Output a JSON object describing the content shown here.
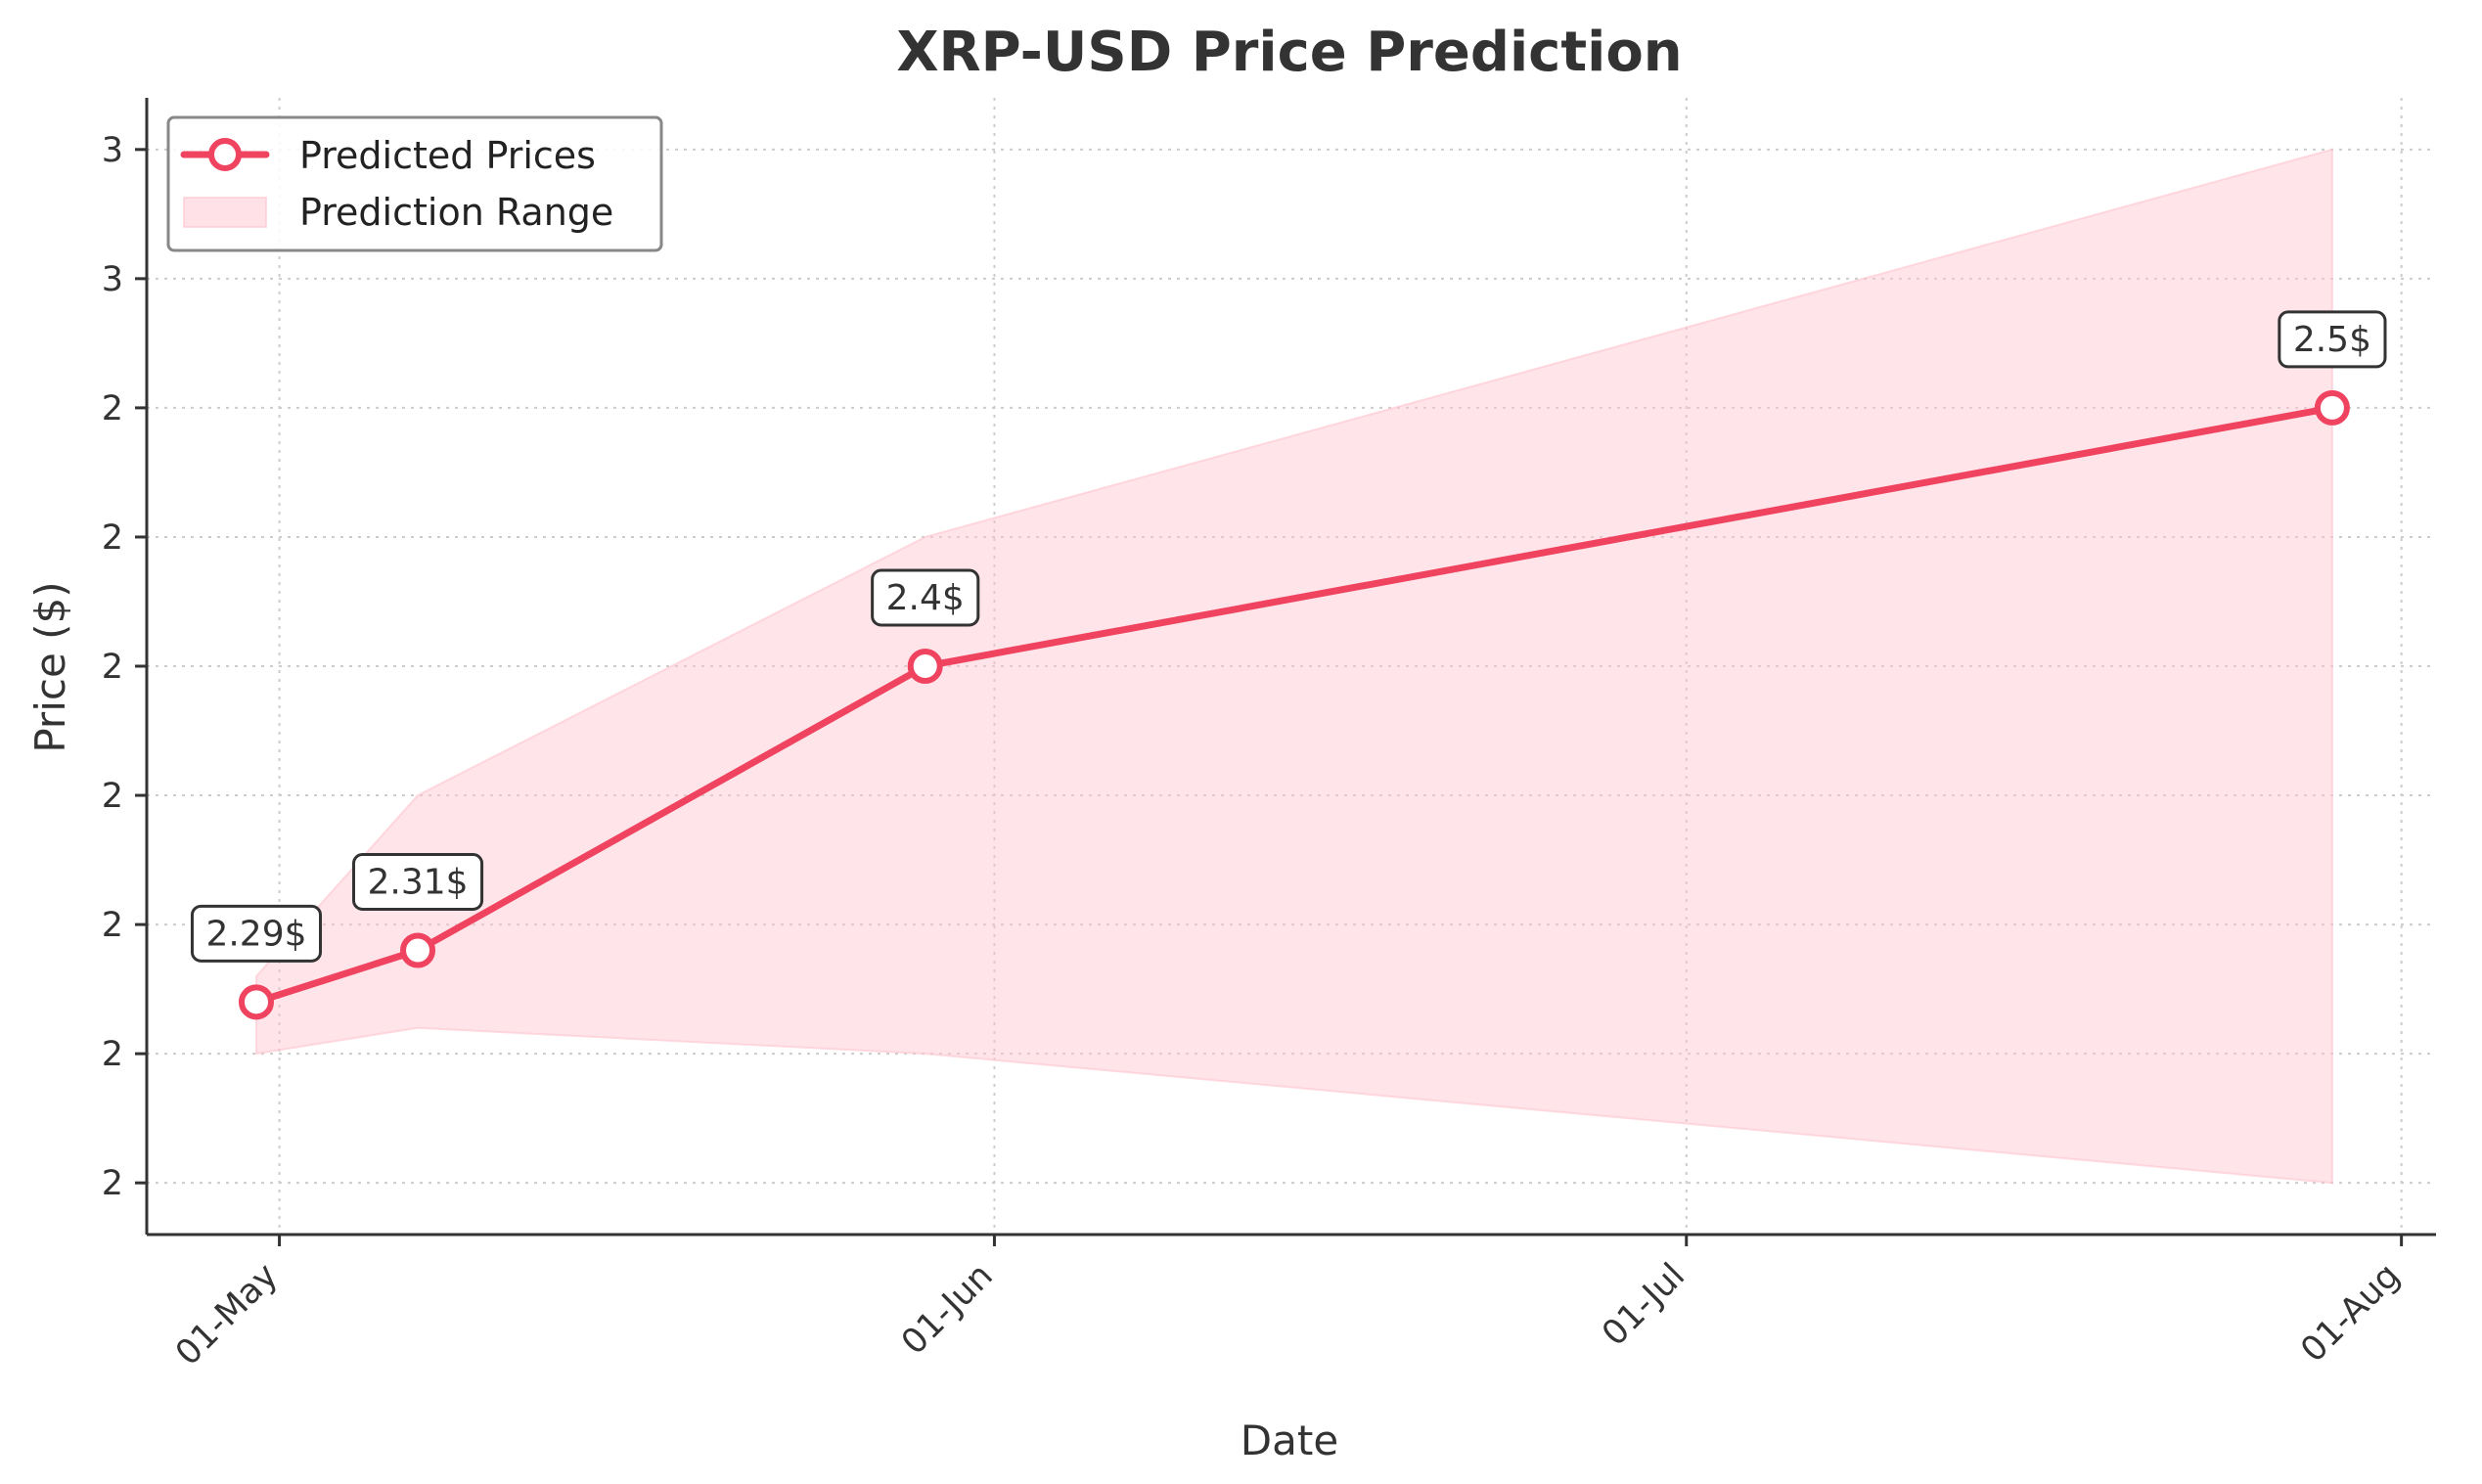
{
  "chart_data": {
    "type": "line",
    "title": "XRP-USD Price Prediction",
    "xlabel": "Date",
    "ylabel": "Price ($)",
    "grid": true,
    "legend_position": "top-left",
    "x_ticks": [
      {
        "date": "2025-05-01",
        "label": "01-May"
      },
      {
        "date": "2025-06-01",
        "label": "01-Jun"
      },
      {
        "date": "2025-07-01",
        "label": "01-Jul"
      },
      {
        "date": "2025-08-01",
        "label": "01-Aug"
      }
    ],
    "xlim": [
      "2025-04-25T06:00",
      "2025-08-02T12:00"
    ],
    "y_ticks": [
      {
        "value": 2.22,
        "label": "2"
      },
      {
        "value": 2.27,
        "label": "2"
      },
      {
        "value": 2.32,
        "label": "2"
      },
      {
        "value": 2.37,
        "label": "2"
      },
      {
        "value": 2.42,
        "label": "2"
      },
      {
        "value": 2.47,
        "label": "2"
      },
      {
        "value": 2.52,
        "label": "2"
      },
      {
        "value": 2.57,
        "label": "3"
      },
      {
        "value": 2.62,
        "label": "3"
      }
    ],
    "ylim": [
      2.2,
      2.64
    ],
    "series": [
      {
        "name": "Predicted Prices",
        "color": "#f0435f",
        "points": [
          {
            "date": "2025-04-30",
            "value": 2.29,
            "label": "2.29$"
          },
          {
            "date": "2025-05-07",
            "value": 2.31,
            "label": "2.31$"
          },
          {
            "date": "2025-05-29",
            "value": 2.42,
            "label": "2.4$"
          },
          {
            "date": "2025-07-29",
            "value": 2.52,
            "label": "2.5$"
          }
        ]
      }
    ],
    "range": {
      "name": "Prediction Range",
      "color": "#ffc4cf",
      "points": [
        {
          "date": "2025-04-30",
          "low": 2.27,
          "high": 2.3
        },
        {
          "date": "2025-05-07",
          "low": 2.28,
          "high": 2.37
        },
        {
          "date": "2025-05-29",
          "low": 2.27,
          "high": 2.47
        },
        {
          "date": "2025-07-29",
          "low": 2.22,
          "high": 2.62
        }
      ]
    }
  }
}
